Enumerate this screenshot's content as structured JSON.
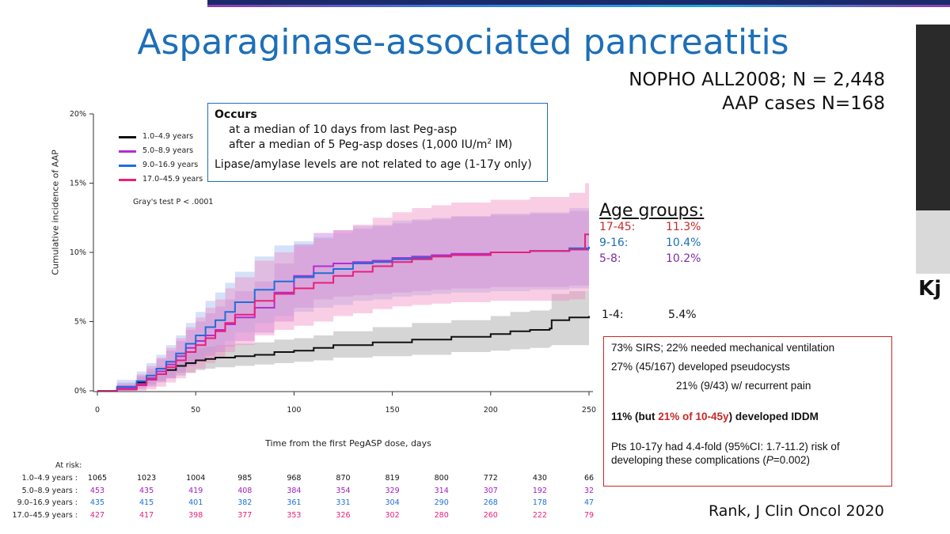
{
  "slide": {
    "title": "Asparaginase-associated pancreatitis",
    "study_line1": "NOPHO ALL2008; N = 2,448",
    "study_line2": "AAP cases N=168",
    "reference": "Rank, J Clin Oncol 2020",
    "speaker_name_fragment": "Kj"
  },
  "occurs_box": {
    "heading": "Occurs",
    "line1": "at a median of 10 days from last Peg-asp",
    "line2_prefix": "after a median of 5 Peg-asp doses (1,000 IU/m",
    "line2_sup": "2",
    "line2_suffix": " IM)",
    "line3": "Lipase/amylase levels are not related to age (1-17y only)"
  },
  "age_groups": {
    "heading": "Age groups:",
    "rows": [
      {
        "name": "17-45:",
        "value": "11.3%",
        "color": "#c62828"
      },
      {
        "name": "9-16:",
        "value": "10.4%",
        "color": "#1d6fb8"
      },
      {
        "name": "5-8:",
        "value": "10.2%",
        "color": "#7b2fa0"
      }
    ],
    "row_1_4": {
      "name": "1-4:",
      "value": "5.4%"
    }
  },
  "info_box": {
    "line1": "73% SIRS; 22% needed mechanical ventilation",
    "line2": "27% (45/167) developed pseudocysts",
    "line3": "21% (9/43) w/ recurrent pain",
    "iddm_prefix": "11% (but ",
    "iddm_red": "21% of 10-45y",
    "iddm_suffix": ") developed IDDM",
    "line5a": "Pts 10-17y had 4.4-fold (95%CI: 1.7-11.2) risk of",
    "line5b_prefix": "developing these complications (",
    "line5b_italic": "P",
    "line5b_suffix": "=0.002)"
  },
  "chart_data": {
    "type": "line",
    "title": "",
    "xlabel": "Time from the first PegASP dose, days",
    "ylabel": "Cumulative incidence of AAP",
    "xlim": [
      0,
      250
    ],
    "ylim": [
      0,
      20
    ],
    "x_ticks": [
      0,
      50,
      100,
      150,
      200,
      250
    ],
    "y_ticks": [
      "0%",
      "5%",
      "10%",
      "15%",
      "20%"
    ],
    "y_tick_values": [
      0,
      5,
      10,
      15,
      20
    ],
    "annotation": "Gray's test P < .0001",
    "grid": false,
    "legend_position": "top-left",
    "series": [
      {
        "name": "1.0–4.9 years",
        "color": "#111111",
        "band_color": "#9a9a9a",
        "x": [
          0,
          10,
          20,
          25,
          30,
          35,
          40,
          45,
          50,
          55,
          60,
          70,
          80,
          90,
          100,
          110,
          120,
          140,
          160,
          180,
          200,
          210,
          220,
          230,
          231,
          240,
          250
        ],
        "y": [
          0,
          0.2,
          0.6,
          0.9,
          1.2,
          1.5,
          1.8,
          2.0,
          2.2,
          2.3,
          2.4,
          2.5,
          2.6,
          2.8,
          2.9,
          3.1,
          3.3,
          3.5,
          3.7,
          3.9,
          4.1,
          4.3,
          4.4,
          4.5,
          5.1,
          5.3,
          5.4
        ],
        "band": [
          [
            0,
            0
          ],
          [
            0.1,
            0.4
          ],
          [
            0.3,
            1.0
          ],
          [
            0.5,
            1.4
          ],
          [
            0.7,
            1.8
          ],
          [
            0.9,
            2.2
          ],
          [
            1.1,
            2.6
          ],
          [
            1.3,
            2.9
          ],
          [
            1.5,
            3.1
          ],
          [
            1.6,
            3.2
          ],
          [
            1.7,
            3.3
          ],
          [
            1.8,
            3.4
          ],
          [
            1.9,
            3.5
          ],
          [
            2.0,
            3.7
          ],
          [
            2.1,
            3.8
          ],
          [
            2.2,
            4.0
          ],
          [
            2.4,
            4.3
          ],
          [
            2.5,
            4.6
          ],
          [
            2.6,
            4.9
          ],
          [
            2.8,
            5.1
          ],
          [
            2.9,
            5.4
          ],
          [
            3.0,
            5.7
          ],
          [
            3.1,
            5.8
          ],
          [
            3.2,
            5.9
          ],
          [
            3.3,
            7.0
          ],
          [
            3.3,
            7.2
          ],
          [
            3.4,
            7.5
          ]
        ]
      },
      {
        "name": "5.0–8.9 years",
        "color": "#b12fd0",
        "band_color": "#c070e0",
        "x": [
          0,
          10,
          20,
          25,
          30,
          35,
          40,
          45,
          50,
          55,
          60,
          65,
          70,
          80,
          90,
          100,
          110,
          120,
          130,
          140,
          150,
          160,
          170,
          180,
          200,
          220,
          240,
          250
        ],
        "y": [
          0,
          0.2,
          0.5,
          0.9,
          1.4,
          1.9,
          2.5,
          3.1,
          3.6,
          4.0,
          4.4,
          4.8,
          5.3,
          6.0,
          7.1,
          8.3,
          9.0,
          9.2,
          9.3,
          9.4,
          9.6,
          9.7,
          9.8,
          9.9,
          10.0,
          10.1,
          10.2,
          10.2
        ],
        "band": [
          [
            0,
            0
          ],
          [
            0,
            0.6
          ],
          [
            0.1,
            1.1
          ],
          [
            0.3,
            1.6
          ],
          [
            0.6,
            2.3
          ],
          [
            0.9,
            2.9
          ],
          [
            1.3,
            3.6
          ],
          [
            1.8,
            4.4
          ],
          [
            2.2,
            5.0
          ],
          [
            2.5,
            5.6
          ],
          [
            2.8,
            6.1
          ],
          [
            3.2,
            6.6
          ],
          [
            3.6,
            7.2
          ],
          [
            4.2,
            7.9
          ],
          [
            5.0,
            9.2
          ],
          [
            6.0,
            10.6
          ],
          [
            6.6,
            11.4
          ],
          [
            6.8,
            11.6
          ],
          [
            6.9,
            11.7
          ],
          [
            7.0,
            11.9
          ],
          [
            7.1,
            12.1
          ],
          [
            7.2,
            12.3
          ],
          [
            7.3,
            12.4
          ],
          [
            7.4,
            12.6
          ],
          [
            7.5,
            12.7
          ],
          [
            7.5,
            12.8
          ],
          [
            7.6,
            13.0
          ],
          [
            7.6,
            13.0
          ]
        ]
      },
      {
        "name": "9.0–16.9 years",
        "color": "#1e6fd9",
        "band_color": "#9ab8ee",
        "x": [
          0,
          10,
          20,
          25,
          30,
          35,
          40,
          45,
          50,
          55,
          60,
          65,
          70,
          80,
          90,
          100,
          110,
          120,
          130,
          140,
          150,
          160,
          170,
          180,
          200,
          220,
          240,
          250
        ],
        "y": [
          0,
          0.3,
          0.7,
          1.1,
          1.6,
          2.1,
          2.7,
          3.4,
          4.0,
          4.6,
          5.1,
          5.7,
          6.4,
          7.3,
          7.9,
          8.2,
          8.5,
          8.8,
          9.2,
          9.3,
          9.5,
          9.6,
          9.7,
          9.8,
          10.0,
          10.1,
          10.3,
          10.4
        ],
        "band": [
          [
            0,
            0
          ],
          [
            0,
            0.8
          ],
          [
            0.2,
            1.4
          ],
          [
            0.4,
            2.0
          ],
          [
            0.7,
            2.6
          ],
          [
            1.0,
            3.3
          ],
          [
            1.4,
            4.0
          ],
          [
            1.9,
            4.9
          ],
          [
            2.4,
            5.7
          ],
          [
            2.8,
            6.5
          ],
          [
            3.2,
            7.1
          ],
          [
            3.6,
            7.8
          ],
          [
            4.2,
            8.6
          ],
          [
            4.9,
            9.7
          ],
          [
            5.4,
            10.5
          ],
          [
            5.7,
            10.8
          ],
          [
            6.0,
            11.1
          ],
          [
            6.2,
            11.4
          ],
          [
            6.5,
            11.9
          ],
          [
            6.6,
            12.0
          ],
          [
            6.8,
            12.3
          ],
          [
            6.9,
            12.4
          ],
          [
            7.0,
            12.5
          ],
          [
            7.1,
            12.6
          ],
          [
            7.2,
            12.8
          ],
          [
            7.3,
            12.9
          ],
          [
            7.4,
            13.2
          ],
          [
            7.5,
            13.3
          ]
        ]
      },
      {
        "name": "17.0–45.9 years",
        "color": "#e8207a",
        "band_color": "#f08ac0",
        "x": [
          0,
          10,
          20,
          25,
          30,
          35,
          40,
          45,
          50,
          55,
          60,
          65,
          70,
          80,
          90,
          100,
          110,
          120,
          130,
          140,
          150,
          160,
          170,
          180,
          200,
          220,
          240,
          248,
          250
        ],
        "y": [
          0,
          0.1,
          0.4,
          0.8,
          1.2,
          1.7,
          2.2,
          2.8,
          3.3,
          3.8,
          4.3,
          4.9,
          5.5,
          6.5,
          7.0,
          7.4,
          7.8,
          8.3,
          8.6,
          9.0,
          9.3,
          9.5,
          9.7,
          9.8,
          10.0,
          10.1,
          10.2,
          11.3,
          11.3
        ],
        "band": [
          [
            0,
            0
          ],
          [
            0,
            0.5
          ],
          [
            0,
            1.2
          ],
          [
            0.1,
            1.8
          ],
          [
            0.3,
            2.4
          ],
          [
            0.6,
            3.1
          ],
          [
            0.9,
            3.8
          ],
          [
            1.3,
            4.6
          ],
          [
            1.6,
            5.3
          ],
          [
            2.0,
            6.0
          ],
          [
            2.4,
            6.6
          ],
          [
            2.8,
            7.4
          ],
          [
            3.3,
            8.2
          ],
          [
            4.0,
            9.4
          ],
          [
            4.4,
            10.0
          ],
          [
            4.7,
            10.5
          ],
          [
            5.0,
            11.0
          ],
          [
            5.4,
            11.6
          ],
          [
            5.6,
            12.0
          ],
          [
            5.9,
            12.5
          ],
          [
            6.1,
            12.9
          ],
          [
            6.2,
            13.2
          ],
          [
            6.3,
            13.4
          ],
          [
            6.4,
            13.6
          ],
          [
            6.5,
            13.8
          ],
          [
            6.5,
            14.0
          ],
          [
            6.6,
            14.3
          ],
          [
            7.2,
            15.0
          ],
          [
            7.2,
            15.0
          ]
        ]
      }
    ],
    "at_risk": {
      "header": "At risk:",
      "x": [
        0,
        25,
        50,
        75,
        100,
        125,
        150,
        175,
        200,
        225,
        250
      ],
      "rows": [
        {
          "label": "1.0–4.9 years :",
          "color": "#111111",
          "values": [
            "1065",
            "1023",
            "1004",
            "985",
            "968",
            "870",
            "819",
            "800",
            "772",
            "430",
            "66"
          ]
        },
        {
          "label": "5.0–8.9 years :",
          "color": "#a020c0",
          "values": [
            "453",
            "435",
            "419",
            "408",
            "384",
            "354",
            "329",
            "314",
            "307",
            "192",
            "32"
          ]
        },
        {
          "label": "9.0–16.9 years :",
          "color": "#1e6fd9",
          "values": [
            "435",
            "415",
            "401",
            "382",
            "361",
            "331",
            "304",
            "290",
            "268",
            "178",
            "47"
          ]
        },
        {
          "label": "17.0–45.9 years :",
          "color": "#e8207a",
          "values": [
            "427",
            "417",
            "398",
            "377",
            "353",
            "326",
            "302",
            "280",
            "260",
            "222",
            "79"
          ]
        }
      ]
    }
  }
}
